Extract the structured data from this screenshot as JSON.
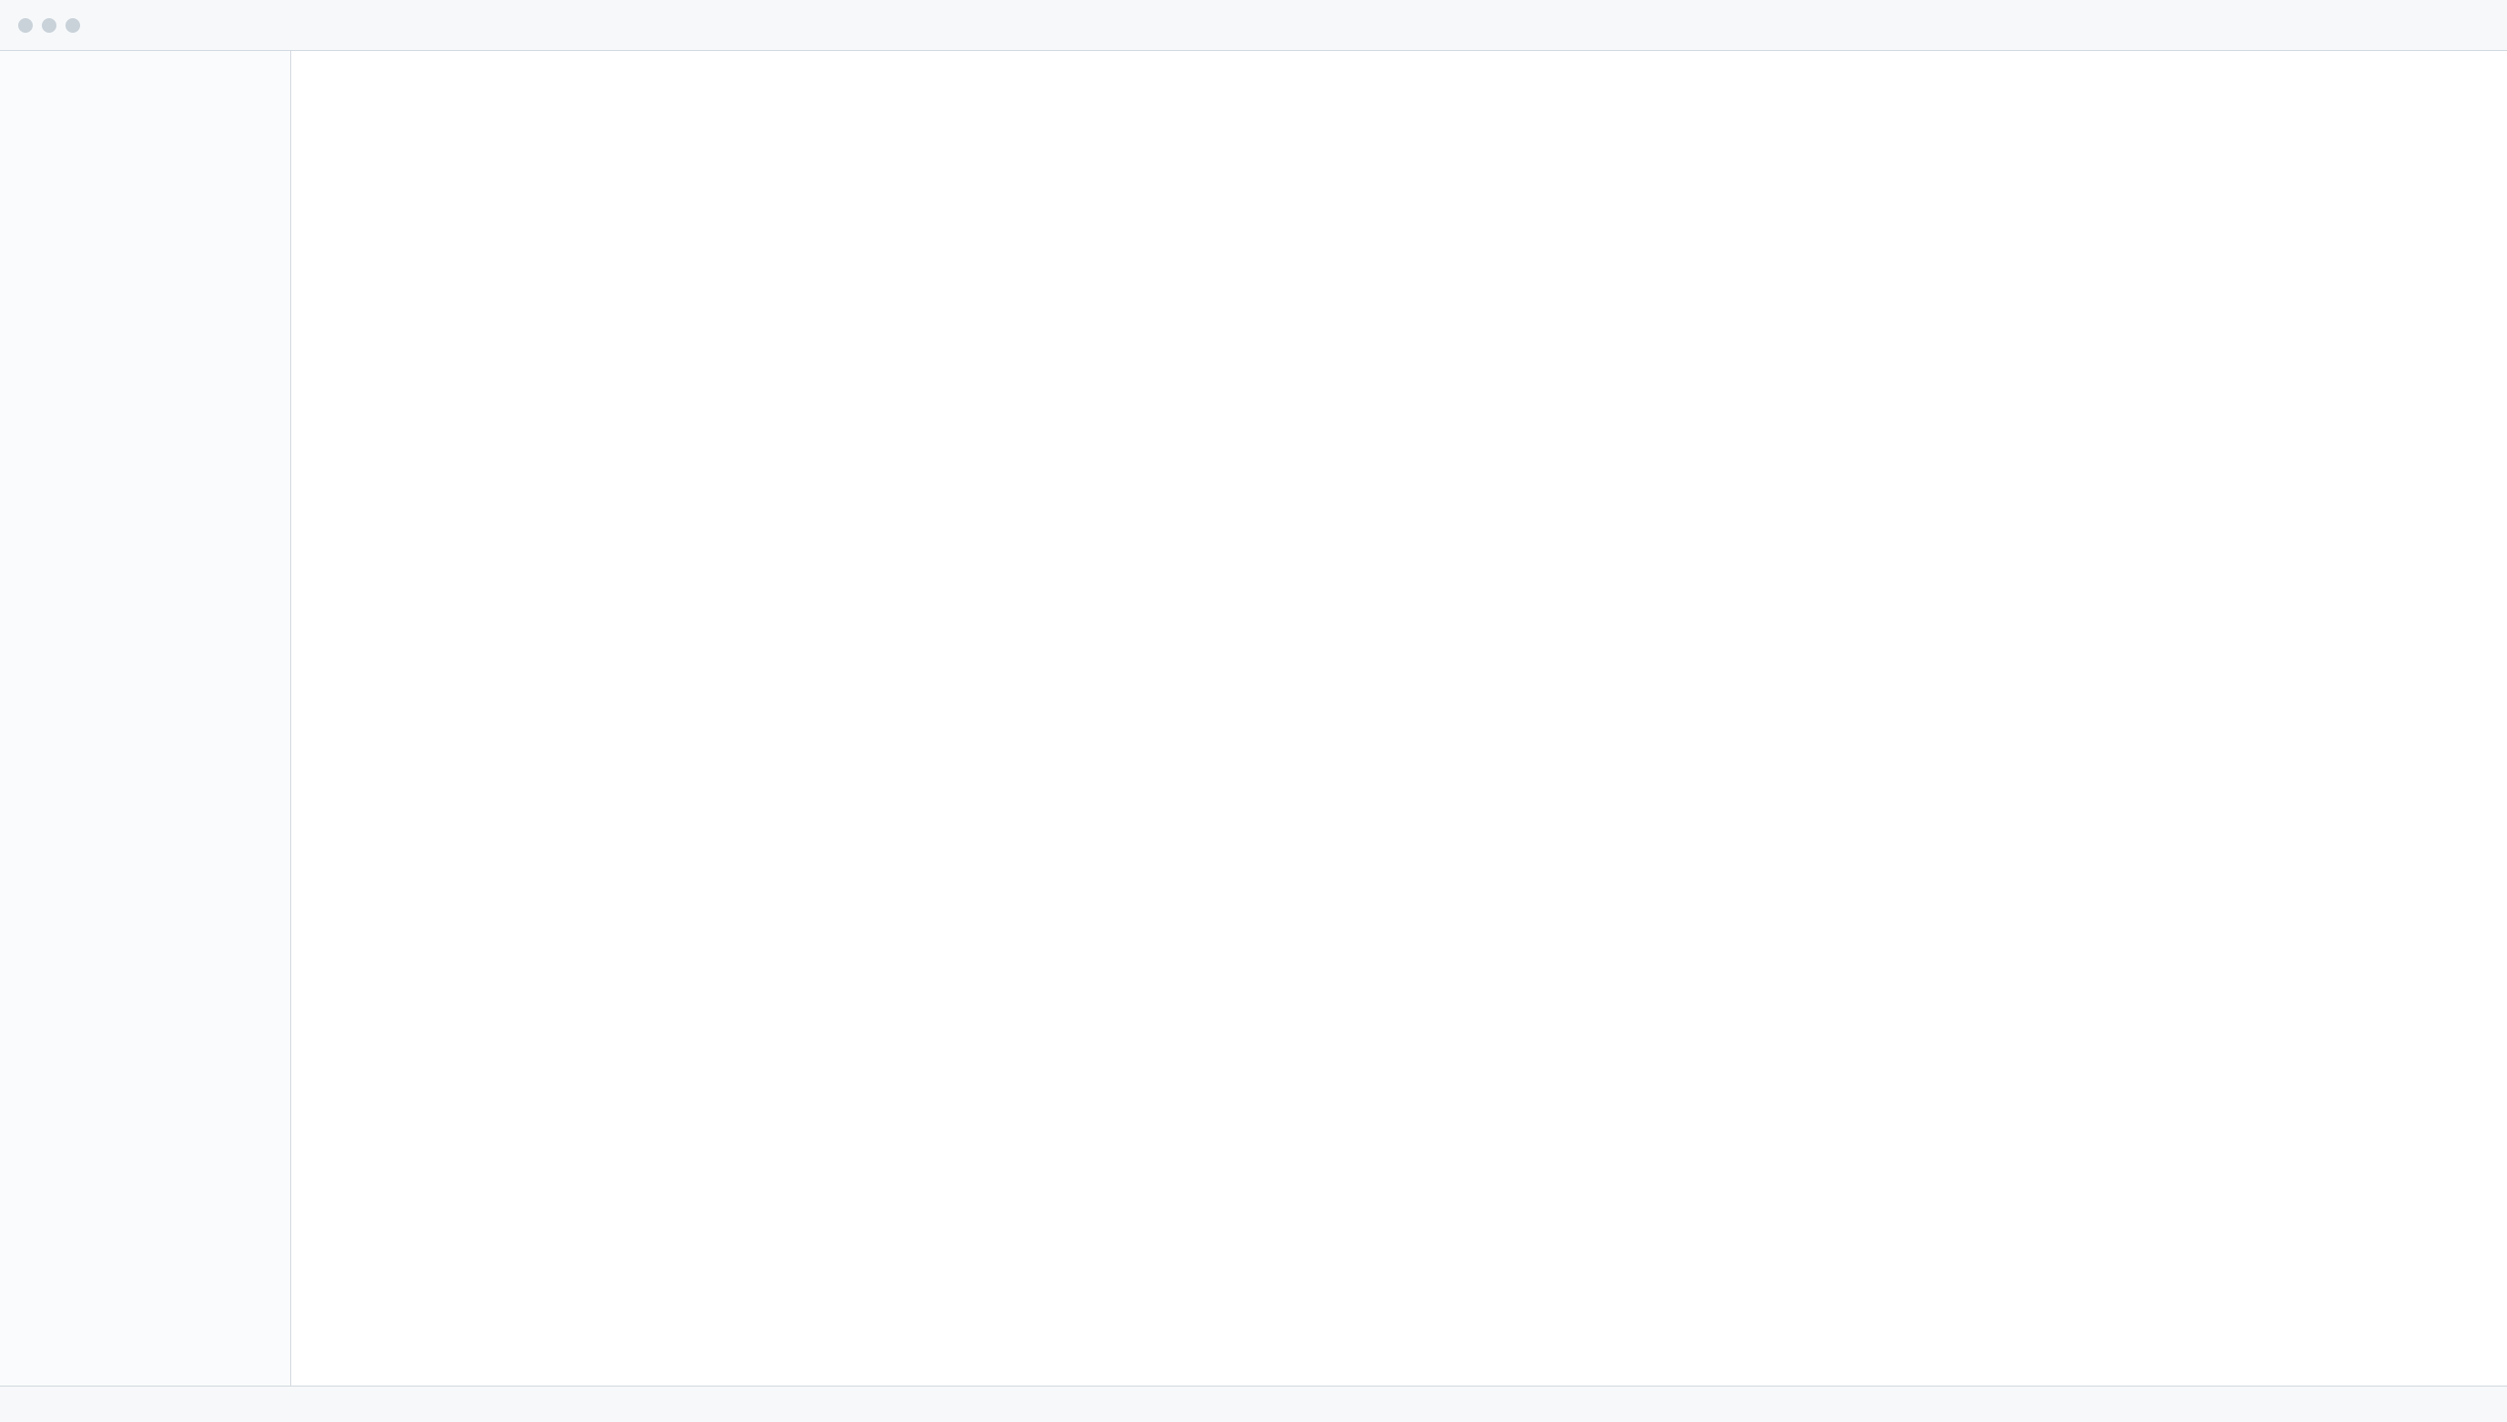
{
  "window": {
    "title": ""
  },
  "main": {
    "title": ""
  },
  "status": {
    "text": ""
  }
}
